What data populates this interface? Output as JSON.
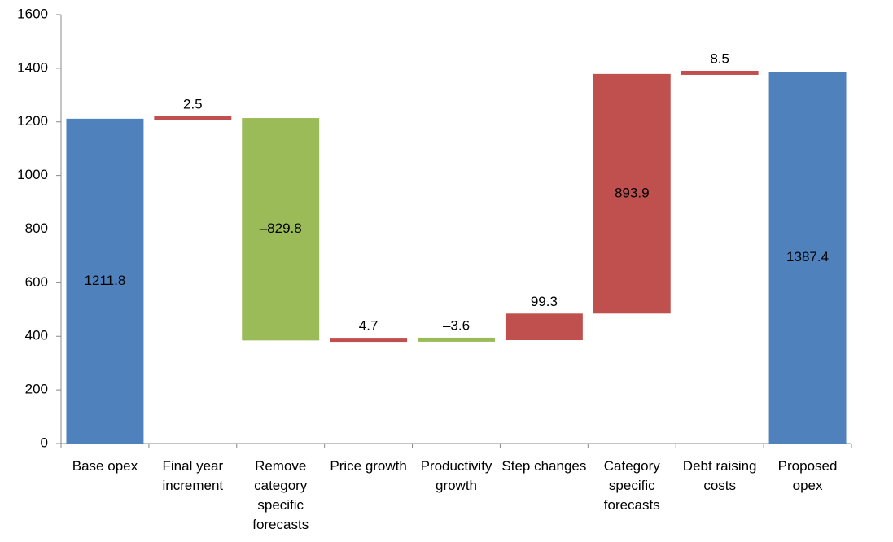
{
  "chart_data": {
    "type": "waterfall",
    "categories": [
      "Base opex",
      "Final year increment",
      "Remove category specific forecasts",
      "Price growth",
      "Productivity growth",
      "Step changes",
      "Category specific forecasts",
      "Debt raising costs",
      "Proposed opex"
    ],
    "values": [
      1211.8,
      2.5,
      -829.8,
      4.7,
      -3.6,
      99.3,
      893.9,
      8.5,
      1387.4
    ],
    "value_labels": [
      "1211.8",
      "2.5",
      "–829.8",
      "4.7",
      "–3.6",
      "99.3",
      "893.9",
      "8.5",
      "1387.4"
    ],
    "measure": [
      "total",
      "relative",
      "relative",
      "relative",
      "relative",
      "relative",
      "relative",
      "relative",
      "total"
    ],
    "total_color": "#4f81bd",
    "increasing_color": "#c0504d",
    "decreasing_color": "#9bbb59",
    "ylim": [
      0,
      1600
    ],
    "yticks": [
      0,
      200,
      400,
      600,
      800,
      1000,
      1200,
      1400,
      1600
    ],
    "grid": false
  }
}
